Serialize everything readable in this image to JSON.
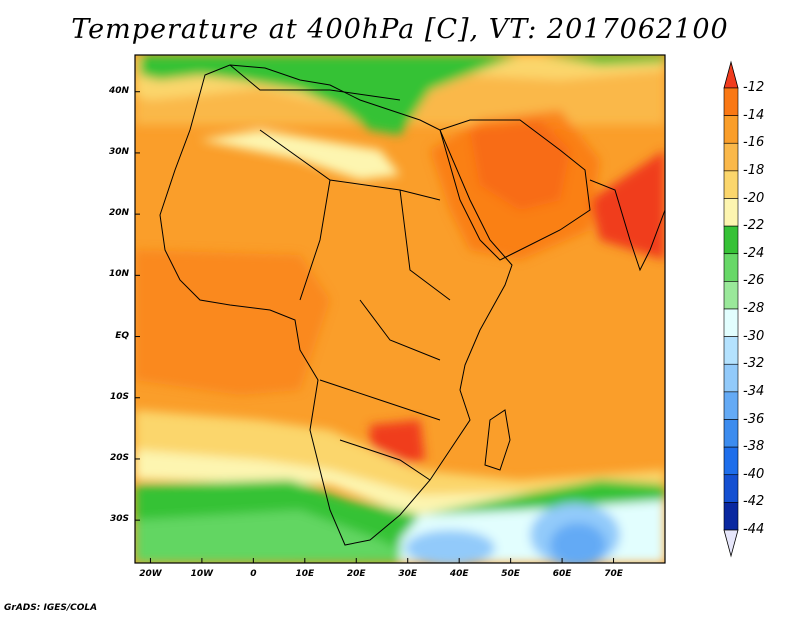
{
  "title": "Temperature at 400hPa [C], VT: 2017062100",
  "footer": "GrADS: IGES/COLA",
  "map": {
    "lon_range": [
      -23,
      80
    ],
    "lat_range": [
      -37,
      46
    ],
    "x_ticks": [
      {
        "value": -20,
        "label": "20W"
      },
      {
        "value": -10,
        "label": "10W"
      },
      {
        "value": 0,
        "label": "0"
      },
      {
        "value": 10,
        "label": "10E"
      },
      {
        "value": 20,
        "label": "20E"
      },
      {
        "value": 30,
        "label": "30E"
      },
      {
        "value": 40,
        "label": "40E"
      },
      {
        "value": 50,
        "label": "50E"
      },
      {
        "value": 60,
        "label": "60E"
      },
      {
        "value": 70,
        "label": "70E"
      }
    ],
    "y_ticks": [
      {
        "value": 40,
        "label": "40N"
      },
      {
        "value": 30,
        "label": "30N"
      },
      {
        "value": 20,
        "label": "20N"
      },
      {
        "value": 10,
        "label": "10N"
      },
      {
        "value": 0,
        "label": "EQ"
      },
      {
        "value": -10,
        "label": "10S"
      },
      {
        "value": -20,
        "label": "20S"
      },
      {
        "value": -30,
        "label": "30S"
      }
    ]
  },
  "colorbar": {
    "levels": [
      "-12",
      "-14",
      "-16",
      "-18",
      "-20",
      "-22",
      "-24",
      "-26",
      "-28",
      "-30",
      "-32",
      "-34",
      "-36",
      "-38",
      "-40",
      "-42",
      "-44"
    ],
    "colors": [
      "#f03c1e",
      "#fa7814",
      "#fa9e2a",
      "#fab84a",
      "#fbd66c",
      "#fdf5b0",
      "#36c236",
      "#67d867",
      "#9ae89a",
      "#e2fefe",
      "#b4e2fe",
      "#92cafa",
      "#64aaf5",
      "#3c8cef",
      "#1e6eeb",
      "#1450d2",
      "#0a28a0",
      "#0a0a64"
    ],
    "top_color": "#f03c1e",
    "bottom_color": "#e6e6fa"
  }
}
